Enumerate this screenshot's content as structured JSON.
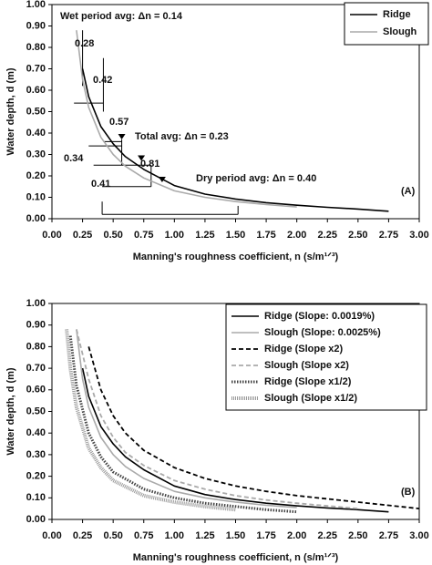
{
  "chart_data": [
    {
      "type": "line",
      "ylabel": "Water depth, d (m)",
      "xlabel": "Manning's roughness coefficient, n (s/m¹ᐟ³)",
      "xlim": [
        0,
        3
      ],
      "ylim": [
        0,
        1
      ],
      "xticks": [
        {
          "value": 0,
          "label": "0.00"
        },
        {
          "value": 0.25,
          "label": "0.25"
        },
        {
          "value": 0.5,
          "label": "0.50"
        },
        {
          "value": 0.75,
          "label": "0.75"
        },
        {
          "value": 1,
          "label": "1.00"
        },
        {
          "value": 1.25,
          "label": "1.25"
        },
        {
          "value": 1.5,
          "label": "1.50"
        },
        {
          "value": 1.75,
          "label": "1.75"
        },
        {
          "value": 2,
          "label": "2.00"
        },
        {
          "value": 2.25,
          "label": "2.25"
        },
        {
          "value": 2.5,
          "label": "2.50"
        },
        {
          "value": 2.75,
          "label": "2.75"
        },
        {
          "value": 3,
          "label": "3.00"
        }
      ],
      "yticks": [
        {
          "value": 0,
          "label": "0.00"
        },
        {
          "value": 0.1,
          "label": "0.10"
        },
        {
          "value": 0.2,
          "label": "0.20"
        },
        {
          "value": 0.3,
          "label": "0.30"
        },
        {
          "value": 0.4,
          "label": "0.40"
        },
        {
          "value": 0.5,
          "label": "0.50"
        },
        {
          "value": 0.6,
          "label": "0.60"
        },
        {
          "value": 0.7,
          "label": "0.70"
        },
        {
          "value": 0.8,
          "label": "0.80"
        },
        {
          "value": 0.9,
          "label": "0.90"
        },
        {
          "value": 1,
          "label": "1.00"
        }
      ],
      "legend": "upper right",
      "series": [
        {
          "name": "Ridge",
          "color": "#000000",
          "line_style": "solid",
          "x": [
            0.25,
            0.3,
            0.4,
            0.5,
            0.6,
            0.75,
            1.0,
            1.25,
            1.5,
            1.75,
            2.0,
            2.25,
            2.5,
            2.75
          ],
          "values": [
            0.7,
            0.57,
            0.43,
            0.35,
            0.29,
            0.23,
            0.155,
            0.115,
            0.092,
            0.075,
            0.063,
            0.053,
            0.045,
            0.035
          ]
        },
        {
          "name": "Slough",
          "color": "#aaaaaa",
          "line_style": "solid",
          "x": [
            0.2,
            0.25,
            0.3,
            0.4,
            0.5,
            0.6,
            0.75,
            1.0,
            1.25,
            1.5,
            1.75,
            2.0
          ],
          "values": [
            0.88,
            0.65,
            0.52,
            0.38,
            0.3,
            0.245,
            0.19,
            0.13,
            0.1,
            0.08,
            0.066,
            0.055
          ]
        }
      ],
      "annotations": [
        "Wet period avg: Δn = 0.14",
        "0.42",
        "0.57",
        "Total avg: Δn = 0.23",
        "0.81",
        "Dry period avg: Δn = 0.40",
        "0.28",
        "0.34",
        "0.41",
        "(A)"
      ]
    },
    {
      "type": "line",
      "ylabel": "Water depth, d (m)",
      "xlabel": "Manning's roughness coefficient, n (s/m¹ᐟ³)",
      "xlim": [
        0,
        3
      ],
      "ylim": [
        0,
        1
      ],
      "xticks": [
        {
          "value": 0,
          "label": "0.00"
        },
        {
          "value": 0.25,
          "label": "0.25"
        },
        {
          "value": 0.5,
          "label": "0.50"
        },
        {
          "value": 0.75,
          "label": "0.75"
        },
        {
          "value": 1,
          "label": "1.00"
        },
        {
          "value": 1.25,
          "label": "1.25"
        },
        {
          "value": 1.5,
          "label": "1.50"
        },
        {
          "value": 1.75,
          "label": "1.75"
        },
        {
          "value": 2,
          "label": "2.00"
        },
        {
          "value": 2.25,
          "label": "2.25"
        },
        {
          "value": 2.5,
          "label": "2.50"
        },
        {
          "value": 2.75,
          "label": "2.75"
        },
        {
          "value": 3,
          "label": "3.00"
        }
      ],
      "yticks": [
        {
          "value": 0,
          "label": "0.00"
        },
        {
          "value": 0.1,
          "label": "0.10"
        },
        {
          "value": 0.2,
          "label": "0.20"
        },
        {
          "value": 0.3,
          "label": "0.30"
        },
        {
          "value": 0.4,
          "label": "0.40"
        },
        {
          "value": 0.5,
          "label": "0.50"
        },
        {
          "value": 0.6,
          "label": "0.60"
        },
        {
          "value": 0.7,
          "label": "0.70"
        },
        {
          "value": 0.8,
          "label": "0.80"
        },
        {
          "value": 0.9,
          "label": "0.90"
        },
        {
          "value": 1,
          "label": "1.00"
        }
      ],
      "legend": "upper right",
      "series": [
        {
          "name": "Ridge (Slope: 0.0019%)",
          "color": "#000000",
          "line_style": "solid",
          "x": [
            0.25,
            0.3,
            0.4,
            0.5,
            0.6,
            0.75,
            1.0,
            1.25,
            1.5,
            1.75,
            2.0,
            2.25,
            2.5,
            2.75
          ],
          "values": [
            0.7,
            0.57,
            0.43,
            0.35,
            0.29,
            0.23,
            0.155,
            0.115,
            0.092,
            0.075,
            0.063,
            0.053,
            0.045,
            0.035
          ]
        },
        {
          "name": "Slough (Slope: 0.0025%)",
          "color": "#aaaaaa",
          "line_style": "solid",
          "x": [
            0.2,
            0.25,
            0.3,
            0.4,
            0.5,
            0.6,
            0.75,
            1.0,
            1.25,
            1.5,
            1.75,
            2.0
          ],
          "values": [
            0.88,
            0.65,
            0.52,
            0.38,
            0.3,
            0.245,
            0.19,
            0.13,
            0.1,
            0.08,
            0.066,
            0.055
          ]
        },
        {
          "name": "Ridge (Slope x2)",
          "color": "#000000",
          "line_style": "dashed",
          "x": [
            0.3,
            0.4,
            0.5,
            0.6,
            0.75,
            1.0,
            1.25,
            1.5,
            1.75,
            2.0,
            2.5,
            3.0
          ],
          "values": [
            0.8,
            0.6,
            0.48,
            0.4,
            0.32,
            0.24,
            0.19,
            0.155,
            0.13,
            0.11,
            0.08,
            0.05
          ]
        },
        {
          "name": "Slough (Slope x2)",
          "color": "#aaaaaa",
          "line_style": "dashed",
          "x": [
            0.2,
            0.3,
            0.4,
            0.5,
            0.6,
            0.75,
            1.0,
            1.25,
            1.5,
            1.75,
            2.0,
            2.5
          ],
          "values": [
            0.88,
            0.65,
            0.48,
            0.38,
            0.31,
            0.25,
            0.18,
            0.14,
            0.11,
            0.09,
            0.075,
            0.05
          ]
        },
        {
          "name": "Ridge (Slope x1/2)",
          "color": "#444444",
          "line_style": "dotted",
          "x": [
            0.15,
            0.2,
            0.3,
            0.4,
            0.5,
            0.75,
            1.0,
            1.25,
            1.5,
            1.75,
            2.0
          ],
          "values": [
            0.85,
            0.62,
            0.4,
            0.29,
            0.22,
            0.14,
            0.1,
            0.075,
            0.06,
            0.045,
            0.035
          ]
        },
        {
          "name": "Slough (Slope x1/2)",
          "color": "#999999",
          "line_style": "hatched",
          "x": [
            0.12,
            0.15,
            0.2,
            0.3,
            0.4,
            0.5,
            0.75,
            1.0,
            1.25,
            1.5
          ],
          "values": [
            0.88,
            0.7,
            0.52,
            0.33,
            0.24,
            0.18,
            0.11,
            0.08,
            0.06,
            0.045
          ]
        }
      ],
      "annotations": [
        "(B)"
      ]
    }
  ]
}
